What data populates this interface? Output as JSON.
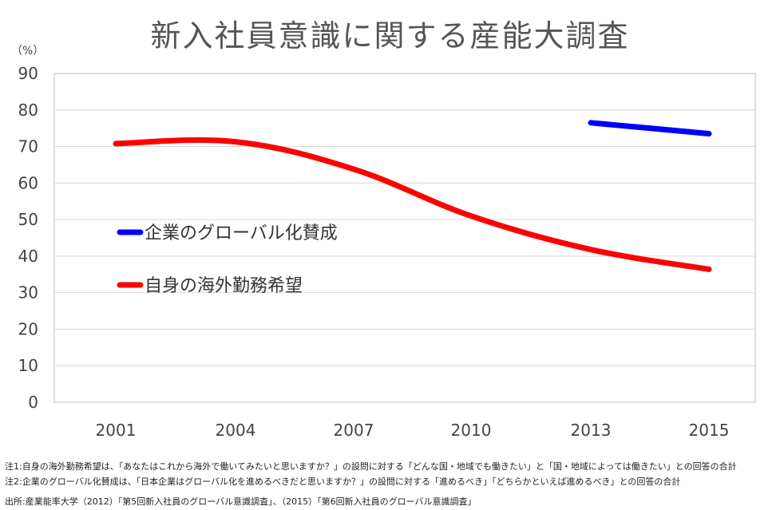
{
  "chart_data": {
    "type": "line",
    "title": "新入社員意識に関する産能大調査",
    "ylabel": "（%）",
    "ylim": [
      0,
      90
    ],
    "yticks": [
      0,
      10,
      20,
      30,
      40,
      50,
      60,
      70,
      80,
      90
    ],
    "categories": [
      "2001",
      "2004",
      "2007",
      "2010",
      "2013",
      "2015"
    ],
    "grid": true,
    "legend_position": "left-center",
    "series": [
      {
        "name": "企業のグローバル化賛成",
        "color": "#0000FF",
        "values": [
          null,
          null,
          null,
          null,
          76.5,
          73.5
        ]
      },
      {
        "name": "自身の海外勤務希望",
        "color": "#FF0000",
        "values": [
          70.8,
          71.3,
          63.8,
          51.0,
          41.8,
          36.4
        ]
      }
    ]
  },
  "notes": {
    "note1": "注1:自身の海外勤務希望は、「あなたはこれから海外で働いてみたいと思いますか？」の設問に対する「どんな国・地域でも働きたい」と「国・地域によっては働きたい」との回答の合計",
    "note2": "注2:企業のグローバル化賛成は、「日本企業はグローバル化を進めるべきだと思いますか？」の設問に対する「進めるべき」「どちらかといえば進めるべき」との回答の合計",
    "source": "出所:産業能率大学（2012）「第5回新入社員のグローバル意識調査」、（2015）「第6回新入社員のグローバル意識調査」"
  }
}
